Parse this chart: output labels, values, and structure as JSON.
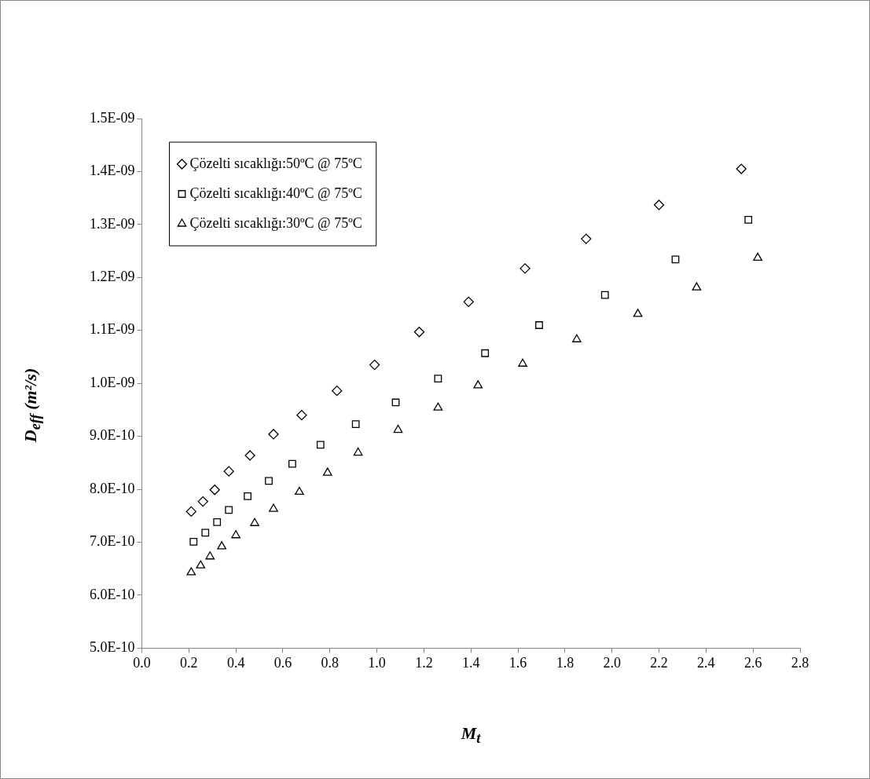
{
  "chart_data": {
    "type": "scatter",
    "xlabel": "M$_{t}$",
    "ylabel": "D$_{eff}$ (m²/s)",
    "xlim": [
      0,
      2.8
    ],
    "ylim": [
      5e-10,
      1.5e-09
    ],
    "xticks": [
      {
        "value": 0,
        "label": "0.0"
      },
      {
        "value": 0.2,
        "label": "0.2"
      },
      {
        "value": 0.4,
        "label": "0.4"
      },
      {
        "value": 0.6,
        "label": "0.6"
      },
      {
        "value": 0.8,
        "label": "0.8"
      },
      {
        "value": 1,
        "label": "1.0"
      },
      {
        "value": 1.2,
        "label": "1.2"
      },
      {
        "value": 1.4,
        "label": "1.4"
      },
      {
        "value": 1.6,
        "label": "1.6"
      },
      {
        "value": 1.8,
        "label": "1.8"
      },
      {
        "value": 2,
        "label": "2.0"
      },
      {
        "value": 2.2,
        "label": "2.2"
      },
      {
        "value": 2.4,
        "label": "2.4"
      },
      {
        "value": 2.6,
        "label": "2.6"
      },
      {
        "value": 2.8,
        "label": "2.8"
      }
    ],
    "yticks": [
      {
        "value": 5e-10,
        "label": "5.0E-10"
      },
      {
        "value": 6e-10,
        "label": "6.0E-10"
      },
      {
        "value": 7e-10,
        "label": "7.0E-10"
      },
      {
        "value": 8e-10,
        "label": "8.0E-10"
      },
      {
        "value": 9e-10,
        "label": "9.0E-10"
      },
      {
        "value": 1e-09,
        "label": "1.0E-09"
      },
      {
        "value": 1.1e-09,
        "label": "1.1E-09"
      },
      {
        "value": 1.2e-09,
        "label": "1.2E-09"
      },
      {
        "value": 1.3e-09,
        "label": "1.3E-09"
      },
      {
        "value": 1.4e-09,
        "label": "1.4E-09"
      },
      {
        "value": 1.5e-09,
        "label": "1.5E-09"
      }
    ],
    "grid": false,
    "legend": "top left",
    "series": [
      {
        "name": "Çözelti sıcaklığı:50ºC @ 75ºC",
        "color": "#000000",
        "marker": "diamond",
        "x": [
          0.21,
          0.26,
          0.31,
          0.37,
          0.46,
          0.56,
          0.68,
          0.83,
          0.99,
          1.18,
          1.39,
          1.63,
          1.89,
          2.2,
          2.55
        ],
        "values": [
          7.58e-10,
          7.77e-10,
          7.99e-10,
          8.34e-10,
          8.64e-10,
          9.04e-10,
          9.4e-10,
          9.86e-10,
          1.035e-09,
          1.097e-09,
          1.154e-09,
          1.217e-09,
          1.273e-09,
          1.337e-09,
          1.405e-09
        ]
      },
      {
        "name": "Çözelti sıcaklığı:40ºC @ 75ºC",
        "color": "#000000",
        "marker": "square",
        "x": [
          0.22,
          0.27,
          0.32,
          0.37,
          0.45,
          0.54,
          0.64,
          0.76,
          0.91,
          1.08,
          1.26,
          1.46,
          1.69,
          1.97,
          2.27,
          2.58
        ],
        "values": [
          7.01e-10,
          7.18e-10,
          7.38e-10,
          7.61e-10,
          7.87e-10,
          8.16e-10,
          8.48e-10,
          8.84e-10,
          9.23e-10,
          9.64e-10,
          1.009e-09,
          1.057e-09,
          1.11e-09,
          1.167e-09,
          1.234e-09,
          1.309e-09
        ]
      },
      {
        "name": "Çözelti sıcaklığı:30ºC @ 75ºC",
        "color": "#000000",
        "marker": "triangle",
        "x": [
          0.21,
          0.25,
          0.29,
          0.34,
          0.4,
          0.48,
          0.56,
          0.67,
          0.79,
          0.92,
          1.09,
          1.26,
          1.43,
          1.62,
          1.85,
          2.11,
          2.36,
          2.62
        ],
        "values": [
          6.43e-10,
          6.56e-10,
          6.73e-10,
          6.92e-10,
          7.13e-10,
          7.36e-10,
          7.63e-10,
          7.95e-10,
          8.31e-10,
          8.69e-10,
          9.12e-10,
          9.54e-10,
          9.96e-10,
          1.037e-09,
          1.083e-09,
          1.131e-09,
          1.181e-09,
          1.237e-09
        ]
      }
    ]
  }
}
